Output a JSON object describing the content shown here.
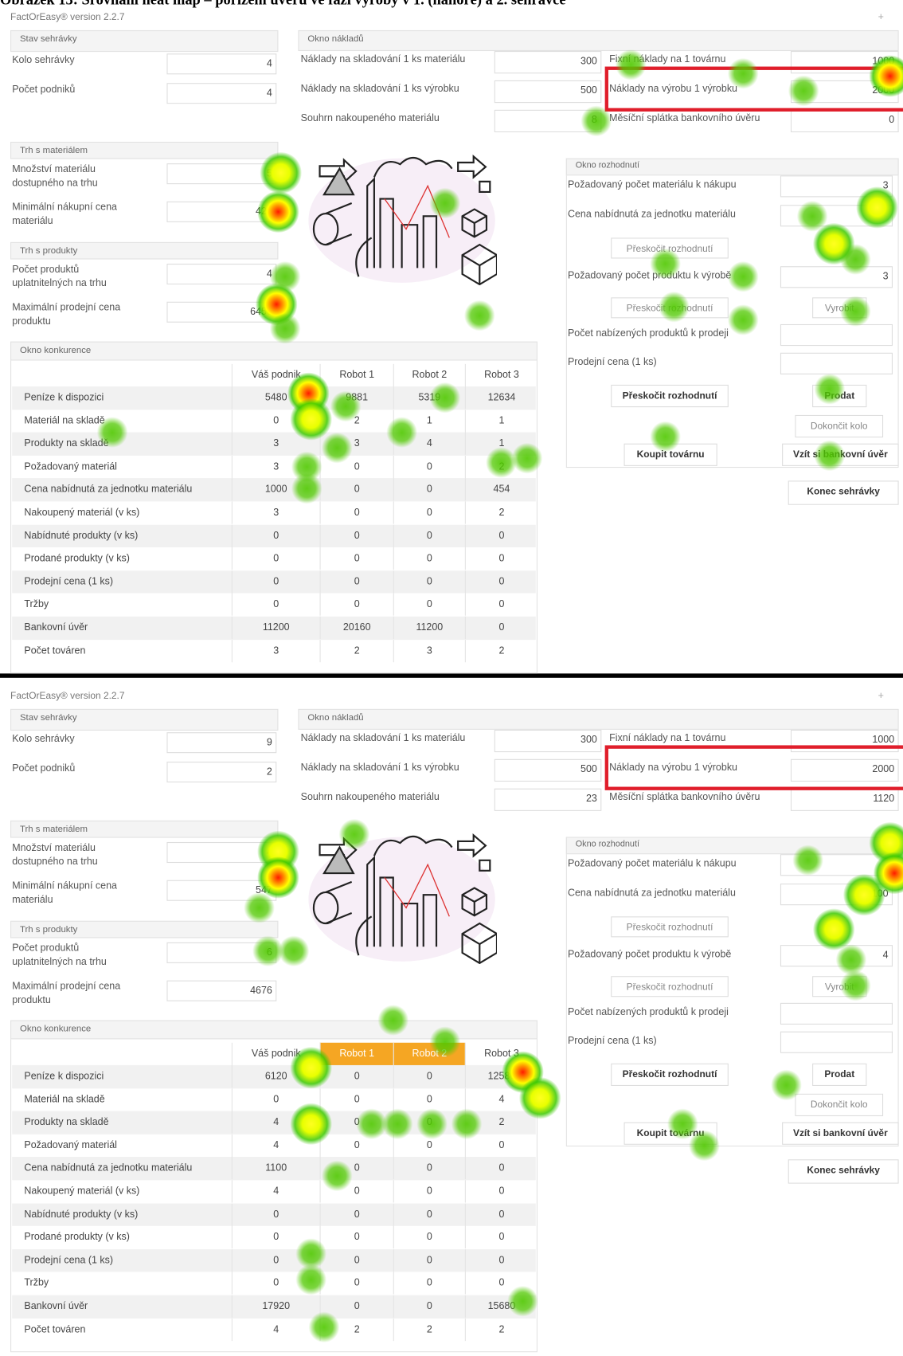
{
  "caption": "Obrázek 13: Srovnání heat map – pořízení úvěru ve fázi výroby v 1. (nahoře) a 2. sehrávce",
  "panels": [
    {
      "version": "FactOrEasy® version 2.2.7",
      "plus": "+",
      "stav": {
        "title": "Stav sehrávky",
        "rows": [
          {
            "label": "Kolo sehrávky",
            "value": 4
          },
          {
            "label": "Počet podniků",
            "value": 4
          }
        ]
      },
      "naklady": {
        "title": "Okno nákladů",
        "rows": [
          {
            "label": "Náklady na skladování 1 ks materiálu",
            "value": 300
          },
          {
            "label": "Náklady na skladování 1 ks výrobku",
            "value": 500
          },
          {
            "label": "Souhrn nakoupeného materiálu",
            "value": 8
          },
          {
            "label": "Fixní náklady na 1 továrnu",
            "value": 1000
          },
          {
            "label": "Náklady na výrobu 1 výrobku",
            "value": 2000
          },
          {
            "label": "Měsíční splátka bankovního úvěru",
            "value": 0
          }
        ]
      },
      "trh_material": {
        "title": "Trh s materiálem",
        "rows": [
          {
            "label": "Množství materiálu dostupného na trhu",
            "value": 5
          },
          {
            "label": "Minimální nákupní cena materiálu",
            "value": 420
          }
        ]
      },
      "trh_produkty": {
        "title": "Trh s produkty",
        "rows": [
          {
            "label": "Počet produktů uplatnitelných na trhu",
            "value": 4
          },
          {
            "label": "Maximální prodejní cena produktu",
            "value": 6450
          }
        ]
      },
      "konkurence": {
        "title": "Okno konkurence",
        "columns": [
          "Váš podnik",
          "Robot 1",
          "Robot 2",
          "Robot 3"
        ],
        "highlight": [],
        "rows": [
          {
            "label": "Peníze k dispozici",
            "values": [
              5480,
              9881,
              5319,
              12634
            ]
          },
          {
            "label": "Materiál na skladě",
            "values": [
              0,
              2,
              1,
              1
            ]
          },
          {
            "label": "Produkty na skladě",
            "values": [
              3,
              3,
              4,
              1
            ]
          },
          {
            "label": "Požadovaný materiál",
            "values": [
              3,
              0,
              0,
              2
            ]
          },
          {
            "label": "Cena nabídnutá za jednotku materiálu",
            "values": [
              1000,
              0,
              0,
              454
            ]
          },
          {
            "label": "Nakoupený materiál (v ks)",
            "values": [
              3,
              0,
              0,
              2
            ]
          },
          {
            "label": "Nabídnuté produkty (v ks)",
            "values": [
              0,
              0,
              0,
              0
            ]
          },
          {
            "label": "Prodané produkty (v ks)",
            "values": [
              0,
              0,
              0,
              0
            ]
          },
          {
            "label": "Prodejní cena (1 ks)",
            "values": [
              0,
              0,
              0,
              0
            ]
          },
          {
            "label": "Tržby",
            "values": [
              0,
              0,
              0,
              0
            ]
          },
          {
            "label": "Bankovní úvěr",
            "values": [
              11200,
              20160,
              11200,
              0
            ]
          },
          {
            "label": "Počet továren",
            "values": [
              3,
              2,
              3,
              2
            ]
          }
        ]
      },
      "rozhodnuti": {
        "title": "Okno rozhodnutí",
        "fields": [
          {
            "label": "Požadovaný počet materiálu k nákupu",
            "value": 3
          },
          {
            "label": "Cena nabídnutá za jednotku materiálu"
          },
          {
            "label": "Požadovaný počet produktu k výrobě",
            "value": 3
          },
          {
            "label": "Počet nabízených produktů k prodeji"
          },
          {
            "label": "Prodejní cena (1 ks)"
          }
        ],
        "buttons": [
          "Přeskočit rozhodnutí",
          "Přeskočit rozhodnutí",
          "Vyrobit",
          "Přeskočit rozhodnutí",
          "Prodat",
          "Dokončit kolo",
          "Koupit továrnu",
          "Vzít si bankovní úvěr",
          "Konec sehrávky"
        ]
      }
    },
    {
      "version": "FactOrEasy® version 2.2.7",
      "plus": "+",
      "stav": {
        "title": "Stav sehrávky",
        "rows": [
          {
            "label": "Kolo sehrávky",
            "value": 9
          },
          {
            "label": "Počet podniků",
            "value": 2
          }
        ]
      },
      "naklady": {
        "title": "Okno nákladů",
        "rows": [
          {
            "label": "Náklady na skladování 1 ks materiálu",
            "value": 300
          },
          {
            "label": "Náklady na skladování 1 ks výrobku",
            "value": 500
          },
          {
            "label": "Souhrn nakoupeného materiálu",
            "value": 23
          },
          {
            "label": "Fixní náklady na 1 továrnu",
            "value": 1000
          },
          {
            "label": "Náklady na výrobu 1 výrobku",
            "value": 2000
          },
          {
            "label": "Měsíční splátka bankovního úvěru",
            "value": 1120
          }
        ]
      },
      "trh_material": {
        "title": "Trh s materiálem",
        "rows": [
          {
            "label": "Množství materiálu dostupného na trhu",
            "value": 4
          },
          {
            "label": "Minimální nákupní cena materiálu",
            "value": 547
          }
        ]
      },
      "trh_produkty": {
        "title": "Trh s produkty",
        "rows": [
          {
            "label": "Počet produktů uplatnitelných na trhu",
            "value": 6
          },
          {
            "label": "Maximální prodejní cena produktu",
            "value": 4676
          }
        ]
      },
      "konkurence": {
        "title": "Okno konkurence",
        "columns": [
          "Váš podnik",
          "Robot 1",
          "Robot 2",
          "Robot 3"
        ],
        "highlight": [
          1,
          2
        ],
        "rows": [
          {
            "label": "Peníze k dispozici",
            "values": [
              6120,
              0,
              0,
              12580
            ]
          },
          {
            "label": "Materiál na skladě",
            "values": [
              0,
              0,
              0,
              4
            ]
          },
          {
            "label": "Produkty na skladě",
            "values": [
              4,
              0,
              0,
              2
            ]
          },
          {
            "label": "Požadovaný materiál",
            "values": [
              4,
              0,
              0,
              0
            ]
          },
          {
            "label": "Cena nabídnutá za jednotku materiálu",
            "values": [
              1100,
              0,
              0,
              0
            ]
          },
          {
            "label": "Nakoupený materiál (v ks)",
            "values": [
              4,
              0,
              0,
              0
            ]
          },
          {
            "label": "Nabídnuté produkty (v ks)",
            "values": [
              0,
              0,
              0,
              0
            ]
          },
          {
            "label": "Prodané produkty (v ks)",
            "values": [
              0,
              0,
              0,
              0
            ]
          },
          {
            "label": "Prodejní cena (1 ks)",
            "values": [
              0,
              0,
              0,
              0
            ]
          },
          {
            "label": "Tržby",
            "values": [
              0,
              0,
              0,
              0
            ]
          },
          {
            "label": "Bankovní úvěr",
            "values": [
              17920,
              0,
              0,
              15680
            ]
          },
          {
            "label": "Počet továren",
            "values": [
              4,
              2,
              2,
              2
            ]
          }
        ]
      },
      "rozhodnuti": {
        "title": "Okno rozhodnutí",
        "fields": [
          {
            "label": "Požadovaný počet materiálu k nákupu"
          },
          {
            "label": "Cena nabídnutá za jednotku materiálu",
            "value": 1100
          },
          {
            "label": "Požadovaný počet produktu k výrobě",
            "value": 4
          },
          {
            "label": "Počet nabízených produktů k prodeji"
          },
          {
            "label": "Prodejní cena (1 ks)"
          }
        ],
        "buttons": [
          "Přeskočit rozhodnutí",
          "Přeskočit rozhodnutí",
          "Vyrobit",
          "Přeskočit rozhodnutí",
          "Prodat",
          "Dokončit kolo",
          "Koupit továrnu",
          "Vzít si bankovní úvěr",
          "Konec sehrávky"
        ]
      }
    }
  ]
}
